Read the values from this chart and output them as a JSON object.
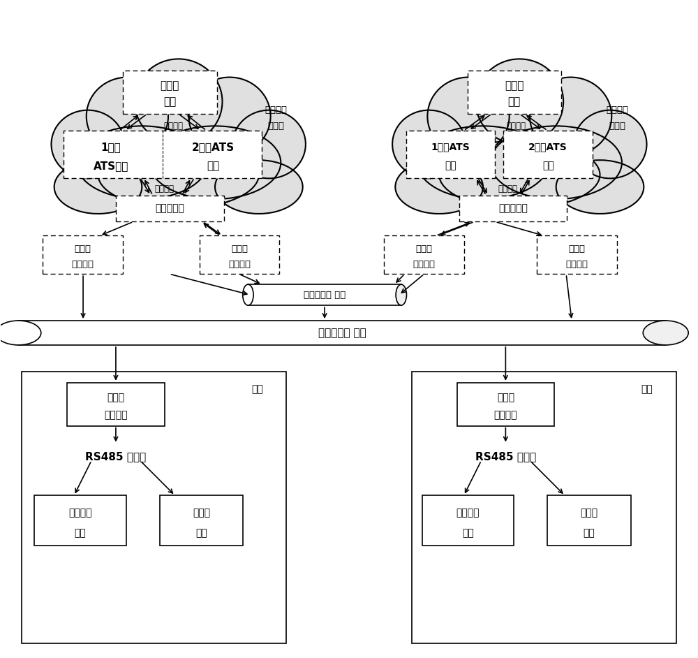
{
  "background_color": "#ffffff",
  "shared_storage_text_L1": "共享云",
  "shared_storage_text_L2": "存储",
  "virtual_network_text": "虚拟网络",
  "left_cloud_label_L1": "主用中心",
  "left_cloud_label_L2": "云平台",
  "right_cloud_label_L1": "备用中心",
  "right_cloud_label_L2": "云平台",
  "line1_ats_L1": "1号线",
  "line1_ats_L2": "ATS系统",
  "line2_ats_L1": "2号线ATS",
  "line2_ats_L2": "系统",
  "line1_ats_r_L1": "1号线ATS",
  "line1_ats_r_L2": "系统",
  "line2_ats_r_L1": "2号线ATS",
  "line2_ats_r_L2": "系统",
  "core_switch_text": "核心交换机",
  "line_network_equip_L1": "线网级",
  "line_network_equip_L2": "传输设备",
  "line_route_equip_L1": "线路级",
  "line_route_equip_L2": "传输设备",
  "network_cable_text": "线网级传输 网络",
  "route_cable_text": "线路级传输 网络",
  "station_label": "车站",
  "station_equip_L1": "线路级",
  "station_equip_L2": "传输设备",
  "rs485_text": "RS485 以太网",
  "station_local_L1": "车站现地",
  "station_local_L2": "设备",
  "cloud_desktop_L1": "云桌面",
  "cloud_desktop_L2": "终端"
}
